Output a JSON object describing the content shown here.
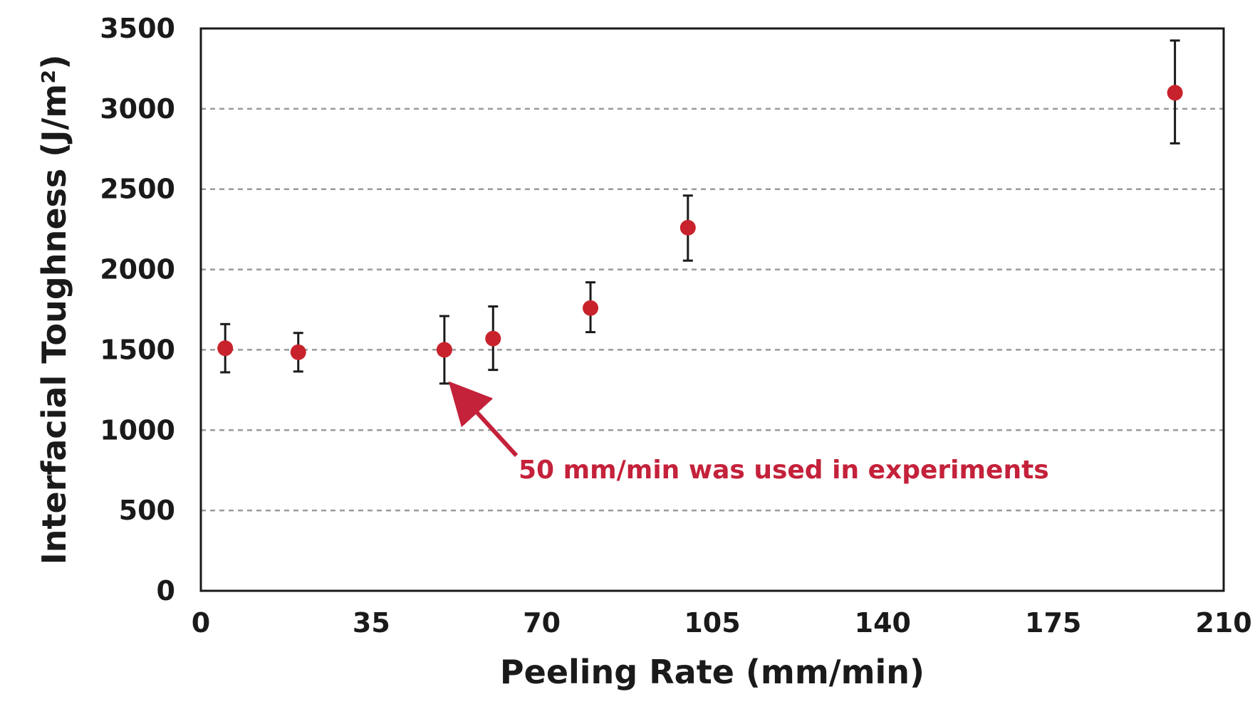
{
  "chart_data": {
    "type": "scatter",
    "title": "",
    "xlabel": "Peeling Rate (mm/min)",
    "ylabel": "Interfacial Toughness (J/m²)",
    "xlim": [
      0,
      210
    ],
    "ylim": [
      0,
      3500
    ],
    "xticks": [
      0,
      35,
      70,
      105,
      140,
      175,
      210
    ],
    "yticks": [
      0,
      500,
      1000,
      1500,
      2000,
      2500,
      3000,
      3500
    ],
    "grid": {
      "y": true,
      "x": false,
      "style": "dashed"
    },
    "legend": "none",
    "points": [
      {
        "x": 5,
        "y": 1510,
        "err_low": 1360,
        "err_high": 1660
      },
      {
        "x": 20,
        "y": 1485,
        "err_low": 1365,
        "err_high": 1605
      },
      {
        "x": 50,
        "y": 1500,
        "err_low": 1290,
        "err_high": 1710
      },
      {
        "x": 60,
        "y": 1570,
        "err_low": 1375,
        "err_high": 1770
      },
      {
        "x": 80,
        "y": 1760,
        "err_low": 1610,
        "err_high": 1920
      },
      {
        "x": 100,
        "y": 2260,
        "err_low": 2055,
        "err_high": 2460
      },
      {
        "x": 200,
        "y": 3100,
        "err_low": 2785,
        "err_high": 3425
      }
    ],
    "annotation": {
      "text": "50 mm/min was used in experiments",
      "target_x": 50,
      "target_y": 1270
    },
    "colors": {
      "marker": "#c8232c",
      "errorbar": "#1a1a1a",
      "annotation": "#c4213a",
      "grid": "#9a9a9a",
      "axis": "#1a1a1a"
    }
  }
}
